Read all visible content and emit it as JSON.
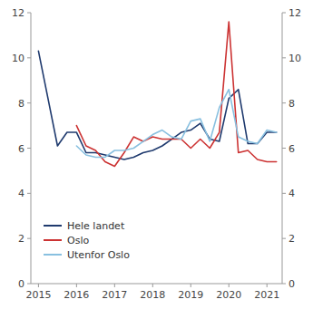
{
  "chart_data": {
    "type": "line",
    "x": [
      2015.0,
      2015.25,
      2015.5,
      2015.75,
      2016.0,
      2016.25,
      2016.5,
      2016.75,
      2017.0,
      2017.25,
      2017.5,
      2017.75,
      2018.0,
      2018.25,
      2018.5,
      2018.75,
      2019.0,
      2019.25,
      2019.5,
      2019.75,
      2020.0,
      2020.25,
      2020.5,
      2020.75,
      2021.0,
      2021.25
    ],
    "series": [
      {
        "name": "Hele landet",
        "color": "#1f3a6e",
        "values": [
          10.3,
          8.2,
          6.1,
          6.7,
          6.7,
          5.8,
          5.8,
          5.7,
          5.6,
          5.5,
          5.6,
          5.8,
          5.9,
          6.1,
          6.4,
          6.7,
          6.8,
          7.1,
          6.4,
          6.3,
          8.2,
          8.6,
          6.2,
          6.2,
          6.7,
          6.7
        ]
      },
      {
        "name": "Oslo",
        "color": "#cc3333",
        "values": [
          null,
          null,
          null,
          null,
          7.0,
          6.1,
          5.9,
          5.4,
          5.2,
          5.8,
          6.5,
          6.3,
          6.5,
          6.4,
          6.4,
          6.4,
          6.0,
          6.4,
          6.0,
          6.7,
          11.6,
          5.8,
          5.9,
          5.5,
          5.4,
          5.4
        ]
      },
      {
        "name": "Utenfor Oslo",
        "color": "#88c0e0",
        "values": [
          null,
          null,
          null,
          null,
          6.1,
          5.7,
          5.6,
          5.6,
          5.9,
          5.9,
          6.0,
          6.3,
          6.6,
          6.8,
          6.5,
          6.4,
          7.2,
          7.3,
          6.3,
          7.8,
          8.6,
          6.5,
          6.3,
          6.2,
          6.8,
          6.7
        ]
      }
    ],
    "xlim": [
      2014.8,
      2021.4
    ],
    "xticks": [
      2015,
      2016,
      2017,
      2018,
      2019,
      2020,
      2021
    ],
    "ylim": [
      0,
      12
    ],
    "yticks": [
      0,
      2,
      4,
      6,
      8,
      10,
      12
    ],
    "y2lim": [
      0,
      12
    ],
    "y2ticks": [
      0,
      2,
      4,
      6,
      8,
      10,
      12
    ],
    "grid": false,
    "legend": "lower left"
  }
}
